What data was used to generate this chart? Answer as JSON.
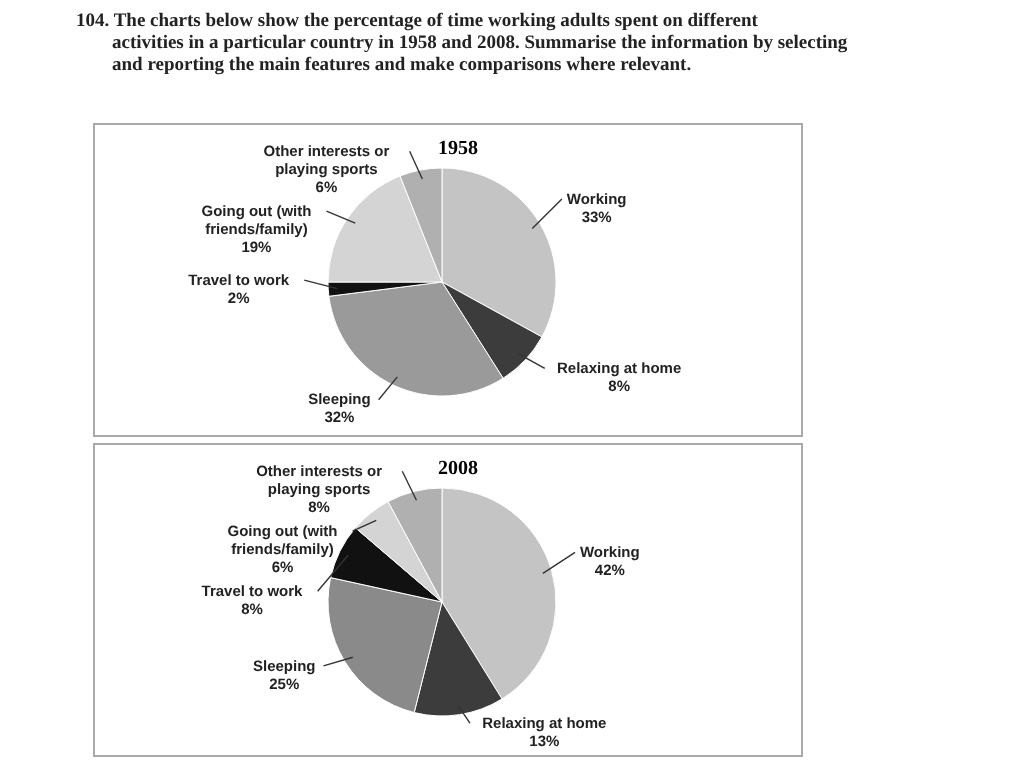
{
  "chart_data": [
    {
      "type": "pie",
      "title": "1958",
      "annotations": [
        "104. The charts below show the percentage of time working adults spent on different activities in a particular country in 1958 and 2008. Summarise the information by selecting and reporting the main features and make comparisons where relevant."
      ],
      "categories": [
        "Working",
        "Relaxing at home",
        "Sleeping",
        "Travel to work",
        "Going out (with friends/family)",
        "Other interests or playing sports"
      ],
      "values": [
        33,
        8,
        32,
        2,
        19,
        6
      ],
      "value_labels": [
        "33%",
        "8%",
        "32%",
        "2%",
        "19%",
        "6%"
      ],
      "colors": [
        "#c4c4c4",
        "#3c3c3c",
        "#9a9a9a",
        "#111111",
        "#d4d4d4",
        "#b0b0b0"
      ]
    },
    {
      "type": "pie",
      "title": "2008",
      "categories": [
        "Working",
        "Relaxing at home",
        "Sleeping",
        "Travel to work",
        "Going out (with friends/family)",
        "Other interests or playing sports"
      ],
      "values": [
        42,
        13,
        25,
        8,
        6,
        8
      ],
      "value_labels": [
        "42%",
        "13%",
        "25%",
        "8%",
        "6%",
        "8%"
      ],
      "colors": [
        "#c4c4c4",
        "#3c3c3c",
        "#8a8a8a",
        "#111111",
        "#d4d4d4",
        "#b0b0b0"
      ]
    }
  ]
}
